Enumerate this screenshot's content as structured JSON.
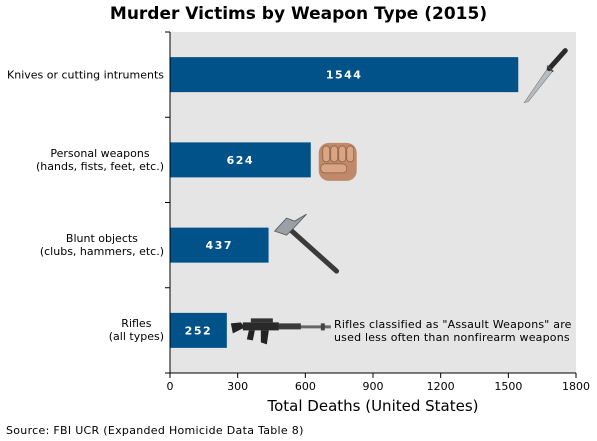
{
  "chart_data": {
    "type": "bar",
    "orientation": "horizontal",
    "title": "Murder Victims by Weapon Type (2015)",
    "xlabel": "Total Deaths (United States)",
    "ylabel": "",
    "xlim": [
      0,
      1800
    ],
    "xticks": [
      "0",
      "300",
      "600",
      "900",
      "1200",
      "1500",
      "1800"
    ],
    "grid": false,
    "bar_color": "#005288",
    "background": "#e5e5e5",
    "categories": [
      [
        "Knives or cutting intruments"
      ],
      [
        "Personal weapons",
        "(hands, fists, feet, etc.)"
      ],
      [
        "Blunt objects",
        "(clubs, hammers, etc.)"
      ],
      [
        "Rifles",
        "(all types)"
      ]
    ],
    "values": [
      1544,
      624,
      437,
      252
    ],
    "value_labels": [
      "1544",
      "624",
      "437",
      "252"
    ],
    "icons": [
      "knife-icon",
      "fist-icon",
      "hammer-icon",
      "rifle-icon"
    ],
    "annotation": [
      "Rifles classified as \"Assault Weapons\" are",
      "used less often than nonfirearm weapons"
    ],
    "source": "Source: FBI UCR (Expanded Homicide Data Table 8)"
  }
}
